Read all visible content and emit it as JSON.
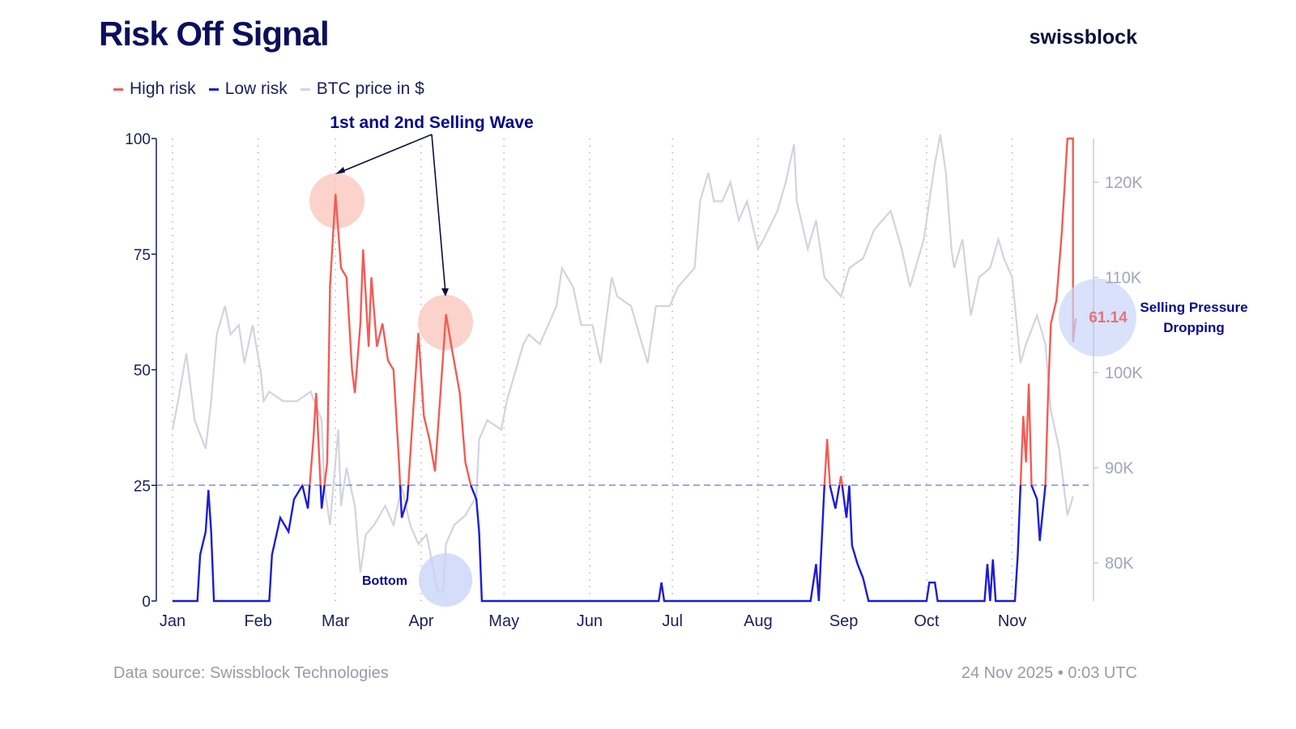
{
  "title": "Risk Off Signal",
  "brand": "swissblock",
  "legend": [
    {
      "label": "High risk",
      "color": "#f25c54"
    },
    {
      "label": "Low risk",
      "color": "#1c1cd6"
    },
    {
      "label": "BTC price in $",
      "color": "#d3d3de"
    }
  ],
  "footer": {
    "source": "Data source: Swissblock Technologies",
    "timestamp": "24 Nov 2025 • 0:03 UTC"
  },
  "chart_data": {
    "type": "line",
    "x_ticks": [
      "Jan",
      "Feb",
      "Mar",
      "Apr",
      "May",
      "Jun",
      "Jul",
      "Aug",
      "Sep",
      "Oct",
      "Nov"
    ],
    "x_range": [
      "2025-01-01",
      "2025-11-24"
    ],
    "y_left": {
      "range": [
        0,
        100
      ],
      "ticks": [
        "0",
        "25",
        "50",
        "75",
        "100"
      ]
    },
    "y_right": {
      "range": [
        76000,
        125000
      ],
      "ticks": [
        "80K",
        "90K",
        "100K",
        "110K",
        "120K"
      ],
      "tick_values": [
        80000,
        90000,
        100000,
        110000,
        120000
      ]
    },
    "threshold": 25,
    "grid": "vertical dotted at month starts",
    "legend_placement": "top-left",
    "risk_series": [
      [
        "2025-01-01",
        0
      ],
      [
        "2025-01-10",
        0
      ],
      [
        "2025-01-11",
        10
      ],
      [
        "2025-01-13",
        15
      ],
      [
        "2025-01-14",
        24
      ],
      [
        "2025-01-15",
        15
      ],
      [
        "2025-01-16",
        0
      ],
      [
        "2025-02-05",
        0
      ],
      [
        "2025-02-06",
        10
      ],
      [
        "2025-02-09",
        18
      ],
      [
        "2025-02-12",
        15
      ],
      [
        "2025-02-14",
        22
      ],
      [
        "2025-02-17",
        25
      ],
      [
        "2025-02-19",
        20
      ],
      [
        "2025-02-21",
        35
      ],
      [
        "2025-02-22",
        45
      ],
      [
        "2025-02-24",
        20
      ],
      [
        "2025-02-26",
        30
      ],
      [
        "2025-02-27",
        68
      ],
      [
        "2025-02-28",
        78
      ],
      [
        "2025-03-01",
        88
      ],
      [
        "2025-03-03",
        72
      ],
      [
        "2025-03-05",
        70
      ],
      [
        "2025-03-07",
        50
      ],
      [
        "2025-03-08",
        45
      ],
      [
        "2025-03-10",
        60
      ],
      [
        "2025-03-11",
        76
      ],
      [
        "2025-03-13",
        55
      ],
      [
        "2025-03-14",
        70
      ],
      [
        "2025-03-16",
        55
      ],
      [
        "2025-03-18",
        60
      ],
      [
        "2025-03-20",
        52
      ],
      [
        "2025-03-22",
        50
      ],
      [
        "2025-03-24",
        30
      ],
      [
        "2025-03-25",
        18
      ],
      [
        "2025-03-27",
        22
      ],
      [
        "2025-03-29",
        40
      ],
      [
        "2025-03-31",
        58
      ],
      [
        "2025-04-02",
        40
      ],
      [
        "2025-04-04",
        35
      ],
      [
        "2025-04-06",
        28
      ],
      [
        "2025-04-08",
        45
      ],
      [
        "2025-04-10",
        62
      ],
      [
        "2025-04-12",
        55
      ],
      [
        "2025-04-15",
        45
      ],
      [
        "2025-04-17",
        30
      ],
      [
        "2025-04-19",
        25
      ],
      [
        "2025-04-21",
        22
      ],
      [
        "2025-04-22",
        15
      ],
      [
        "2025-04-23",
        0
      ],
      [
        "2025-06-26",
        0
      ],
      [
        "2025-06-27",
        4
      ],
      [
        "2025-06-28",
        0
      ],
      [
        "2025-08-20",
        0
      ],
      [
        "2025-08-22",
        8
      ],
      [
        "2025-08-23",
        0
      ],
      [
        "2025-08-25",
        25
      ],
      [
        "2025-08-26",
        35
      ],
      [
        "2025-08-27",
        25
      ],
      [
        "2025-08-29",
        20
      ],
      [
        "2025-08-31",
        27
      ],
      [
        "2025-09-02",
        18
      ],
      [
        "2025-09-03",
        25
      ],
      [
        "2025-09-04",
        12
      ],
      [
        "2025-09-06",
        8
      ],
      [
        "2025-09-08",
        5
      ],
      [
        "2025-09-10",
        0
      ],
      [
        "2025-10-01",
        0
      ],
      [
        "2025-10-02",
        4
      ],
      [
        "2025-10-04",
        4
      ],
      [
        "2025-10-05",
        0
      ],
      [
        "2025-10-22",
        0
      ],
      [
        "2025-10-23",
        8
      ],
      [
        "2025-10-24",
        0
      ],
      [
        "2025-10-25",
        9
      ],
      [
        "2025-10-26",
        0
      ],
      [
        "2025-11-02",
        0
      ],
      [
        "2025-11-03",
        10
      ],
      [
        "2025-11-04",
        25
      ],
      [
        "2025-11-05",
        40
      ],
      [
        "2025-11-06",
        30
      ],
      [
        "2025-11-07",
        47
      ],
      [
        "2025-11-08",
        25
      ],
      [
        "2025-11-10",
        22
      ],
      [
        "2025-11-11",
        13
      ],
      [
        "2025-11-13",
        25
      ],
      [
        "2025-11-14",
        45
      ],
      [
        "2025-11-15",
        60
      ],
      [
        "2025-11-17",
        65
      ],
      [
        "2025-11-19",
        80
      ],
      [
        "2025-11-20",
        90
      ],
      [
        "2025-11-21",
        100
      ],
      [
        "2025-11-23",
        100
      ],
      [
        "2025-11-23",
        56
      ],
      [
        "2025-11-24",
        61.14
      ]
    ],
    "btc_series": [
      [
        "2025-01-01",
        94000
      ],
      [
        "2025-01-03",
        97000
      ],
      [
        "2025-01-06",
        102000
      ],
      [
        "2025-01-09",
        95000
      ],
      [
        "2025-01-13",
        92000
      ],
      [
        "2025-01-15",
        97000
      ],
      [
        "2025-01-17",
        104000
      ],
      [
        "2025-01-20",
        107000
      ],
      [
        "2025-01-22",
        104000
      ],
      [
        "2025-01-25",
        105000
      ],
      [
        "2025-01-27",
        101000
      ],
      [
        "2025-01-30",
        105000
      ],
      [
        "2025-02-02",
        100000
      ],
      [
        "2025-02-03",
        97000
      ],
      [
        "2025-02-05",
        98000
      ],
      [
        "2025-02-10",
        97000
      ],
      [
        "2025-02-15",
        97000
      ],
      [
        "2025-02-20",
        98000
      ],
      [
        "2025-02-24",
        95000
      ],
      [
        "2025-02-25",
        88000
      ],
      [
        "2025-02-27",
        84000
      ],
      [
        "2025-03-02",
        94000
      ],
      [
        "2025-03-03",
        86000
      ],
      [
        "2025-03-05",
        90000
      ],
      [
        "2025-03-08",
        86000
      ],
      [
        "2025-03-10",
        79000
      ],
      [
        "2025-03-12",
        83000
      ],
      [
        "2025-03-15",
        84000
      ],
      [
        "2025-03-19",
        86000
      ],
      [
        "2025-03-22",
        84000
      ],
      [
        "2025-03-25",
        88000
      ],
      [
        "2025-03-28",
        84000
      ],
      [
        "2025-03-31",
        82000
      ],
      [
        "2025-04-03",
        83000
      ],
      [
        "2025-04-07",
        77000
      ],
      [
        "2025-04-09",
        77000
      ],
      [
        "2025-04-10",
        82000
      ],
      [
        "2025-04-13",
        84000
      ],
      [
        "2025-04-17",
        85000
      ],
      [
        "2025-04-21",
        87000
      ],
      [
        "2025-04-22",
        93000
      ],
      [
        "2025-04-25",
        95000
      ],
      [
        "2025-04-30",
        94000
      ],
      [
        "2025-05-02",
        97000
      ],
      [
        "2025-05-08",
        103000
      ],
      [
        "2025-05-10",
        104000
      ],
      [
        "2025-05-14",
        103000
      ],
      [
        "2025-05-20",
        107000
      ],
      [
        "2025-05-22",
        111000
      ],
      [
        "2025-05-26",
        109000
      ],
      [
        "2025-05-29",
        105000
      ],
      [
        "2025-06-02",
        105000
      ],
      [
        "2025-06-05",
        101000
      ],
      [
        "2025-06-09",
        110000
      ],
      [
        "2025-06-11",
        108000
      ],
      [
        "2025-06-16",
        107000
      ],
      [
        "2025-06-19",
        104000
      ],
      [
        "2025-06-22",
        101000
      ],
      [
        "2025-06-25",
        107000
      ],
      [
        "2025-06-30",
        107000
      ],
      [
        "2025-07-03",
        109000
      ],
      [
        "2025-07-09",
        111000
      ],
      [
        "2025-07-11",
        118000
      ],
      [
        "2025-07-14",
        121000
      ],
      [
        "2025-07-16",
        118000
      ],
      [
        "2025-07-19",
        118000
      ],
      [
        "2025-07-22",
        120000
      ],
      [
        "2025-07-25",
        116000
      ],
      [
        "2025-07-28",
        118000
      ],
      [
        "2025-08-01",
        113000
      ],
      [
        "2025-08-03",
        114000
      ],
      [
        "2025-08-08",
        117000
      ],
      [
        "2025-08-11",
        120000
      ],
      [
        "2025-08-14",
        124000
      ],
      [
        "2025-08-15",
        118000
      ],
      [
        "2025-08-19",
        113000
      ],
      [
        "2025-08-22",
        116000
      ],
      [
        "2025-08-25",
        110000
      ],
      [
        "2025-08-31",
        108000
      ],
      [
        "2025-09-03",
        111000
      ],
      [
        "2025-09-08",
        112000
      ],
      [
        "2025-09-12",
        115000
      ],
      [
        "2025-09-18",
        117000
      ],
      [
        "2025-09-22",
        113000
      ],
      [
        "2025-09-25",
        109000
      ],
      [
        "2025-09-30",
        114000
      ],
      [
        "2025-10-02",
        118000
      ],
      [
        "2025-10-04",
        122000
      ],
      [
        "2025-10-06",
        125000
      ],
      [
        "2025-10-08",
        121000
      ],
      [
        "2025-10-10",
        113000
      ],
      [
        "2025-10-11",
        111000
      ],
      [
        "2025-10-14",
        114000
      ],
      [
        "2025-10-17",
        106000
      ],
      [
        "2025-10-20",
        110000
      ],
      [
        "2025-10-24",
        111000
      ],
      [
        "2025-10-27",
        114000
      ],
      [
        "2025-10-29",
        112000
      ],
      [
        "2025-11-01",
        110000
      ],
      [
        "2025-11-04",
        101000
      ],
      [
        "2025-11-06",
        103000
      ],
      [
        "2025-11-10",
        106000
      ],
      [
        "2025-11-13",
        103000
      ],
      [
        "2025-11-15",
        96000
      ],
      [
        "2025-11-18",
        92000
      ],
      [
        "2025-11-21",
        85000
      ],
      [
        "2025-11-23",
        87000
      ]
    ],
    "annotations": {
      "selling_wave": "1st and 2nd Selling Wave",
      "bottom": "Bottom",
      "pressure_line1": "Selling Pressure",
      "pressure_line2": "Dropping",
      "last_value": "61.14"
    }
  }
}
